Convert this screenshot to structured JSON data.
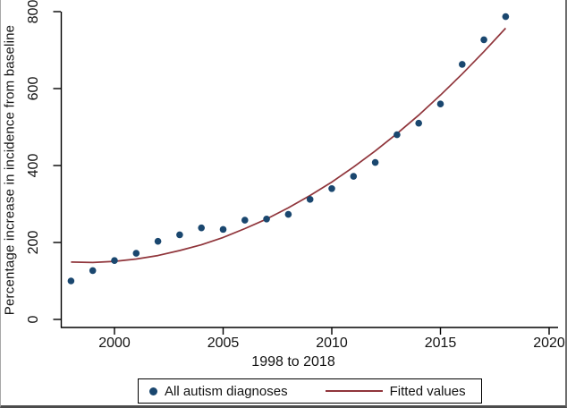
{
  "window": {
    "background": "#ffffff",
    "frame_color": "#4c4c4c"
  },
  "chart_data": {
    "type": "scatter",
    "title": "",
    "xlabel": "1998 to 2018",
    "ylabel": "Percentage increase in incidence from baseline",
    "x_ticks": [
      2000,
      2005,
      2010,
      2015,
      2020
    ],
    "y_ticks": [
      0,
      200,
      400,
      600,
      800
    ],
    "xlim": [
      1997.5,
      2020.5
    ],
    "ylim": [
      0,
      820
    ],
    "grid": false,
    "axis_color": "#000000",
    "legend_position": "bottom-center",
    "years": [
      1998,
      1999,
      2000,
      2001,
      2002,
      2003,
      2004,
      2005,
      2006,
      2007,
      2008,
      2009,
      2010,
      2011,
      2012,
      2013,
      2014,
      2015,
      2016,
      2017,
      2018
    ],
    "series": [
      {
        "name": "All autism diagnoses",
        "type": "scatter",
        "marker": "circle",
        "color": "#1a476f",
        "values": [
          100,
          127,
          153,
          172,
          203,
          220,
          238,
          234,
          258,
          261,
          273,
          312,
          340,
          372,
          408,
          480,
          510,
          560,
          663,
          727,
          787
        ]
      },
      {
        "name": "Fitted values",
        "type": "line",
        "color": "#90353b",
        "values": [
          149,
          148,
          151,
          157,
          166,
          179,
          194,
          213,
          236,
          261,
          290,
          322,
          357,
          396,
          438,
          483,
          531,
          583,
          638,
          696,
          757
        ]
      }
    ]
  }
}
